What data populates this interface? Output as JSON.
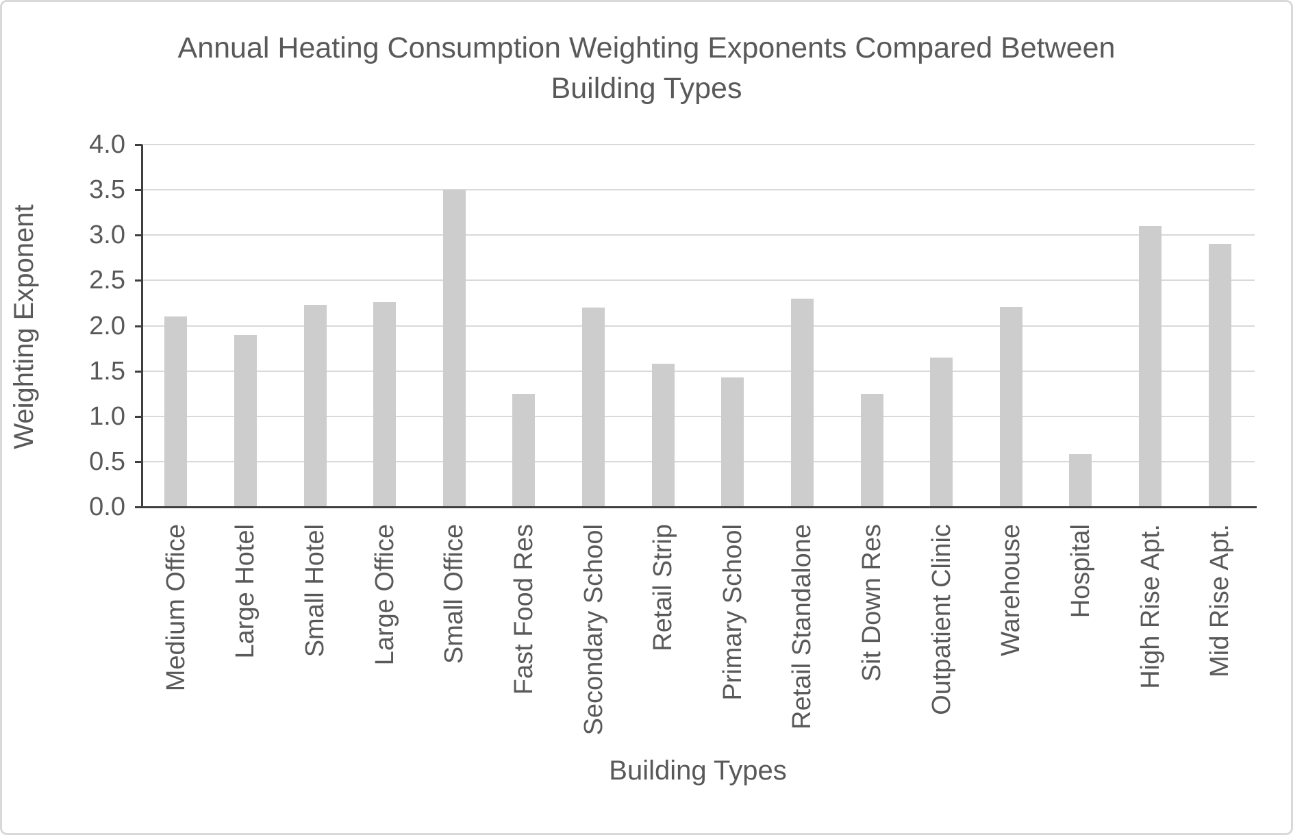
{
  "chart_data": {
    "type": "bar",
    "title": "Annual Heating Consumption Weighting Exponents Compared Between\nBuilding Types",
    "xlabel": "Building Types",
    "ylabel": "Weighting Exponent",
    "categories": [
      "Medium Office",
      "Large Hotel",
      "Small Hotel",
      "Large Office",
      "Small Office",
      "Fast Food Res",
      "Secondary School",
      "Retail Strip",
      "Primary School",
      "Retail Standalone",
      "Sit Down Res",
      "Outpatient Clinic",
      "Warehouse",
      "Hospital",
      "High Rise Apt.",
      "Mid Rise Apt."
    ],
    "values": [
      2.1,
      1.9,
      2.23,
      2.26,
      3.5,
      1.25,
      2.2,
      1.58,
      1.43,
      2.3,
      1.25,
      1.65,
      2.21,
      0.58,
      3.1,
      2.9
    ],
    "ylim": [
      0.0,
      4.0
    ],
    "ytick_step": 0.5,
    "ytick_decimals": 1,
    "grid": "horizontal",
    "legend": "none",
    "colors": {
      "bar_fill": "#cdcdcd",
      "gridline": "#d9d9d9",
      "axis_line": "#3f3f3f",
      "text": "#595959",
      "canvas_border": "#d9d9d9",
      "background": "#ffffff"
    }
  }
}
